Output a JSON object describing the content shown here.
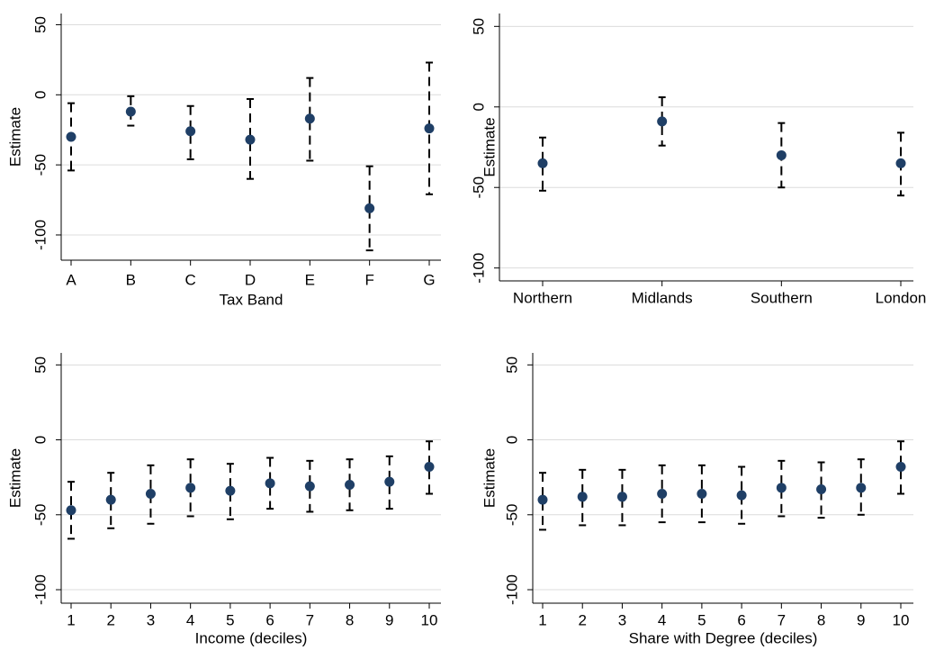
{
  "chart_data": [
    {
      "type": "errorbar",
      "y_label": "Estimate",
      "x_label": "Tax Band",
      "categories": [
        "A",
        "B",
        "C",
        "D",
        "E",
        "F",
        "G"
      ],
      "values": [
        -30,
        -12,
        -26,
        -32,
        -17,
        -81,
        -24
      ],
      "ci_low": [
        -54,
        -22,
        -46,
        -60,
        -47,
        -111,
        -71
      ],
      "ci_high": [
        -6,
        -1,
        -8,
        -3,
        12,
        -51,
        23
      ],
      "ylim": [
        -118,
        58
      ],
      "yticks": [
        -100,
        -50,
        0,
        50
      ],
      "grid": true,
      "color": "#1f3f66",
      "bar_color": "#000000"
    },
    {
      "type": "errorbar",
      "y_label": "Estimate",
      "categories": [
        "Northern",
        "Midlands",
        "Southern",
        "London"
      ],
      "values": [
        -35,
        -9,
        -30,
        -35
      ],
      "ci_low": [
        -52,
        -24,
        -50,
        -55
      ],
      "ci_high": [
        -19,
        6,
        -10,
        -16
      ],
      "ylim": [
        -108,
        58
      ],
      "yticks": [
        -100,
        -50,
        0,
        50
      ],
      "grid": true,
      "color": "#1f3f66",
      "bar_color": "#000000"
    },
    {
      "type": "errorbar",
      "y_label": "Estimate",
      "x_label": "Income (deciles)",
      "categories": [
        "1",
        "2",
        "3",
        "4",
        "5",
        "6",
        "7",
        "8",
        "9",
        "10"
      ],
      "values": [
        -47,
        -40,
        -36,
        -32,
        -34,
        -29,
        -31,
        -30,
        -28,
        -18
      ],
      "ci_low": [
        -66,
        -59,
        -56,
        -51,
        -53,
        -46,
        -48,
        -47,
        -46,
        -36
      ],
      "ci_high": [
        -28,
        -22,
        -17,
        -13,
        -16,
        -12,
        -14,
        -13,
        -11,
        -1
      ],
      "ylim": [
        -109,
        58
      ],
      "yticks": [
        -100,
        -50,
        0,
        50
      ],
      "grid": true,
      "color": "#1f3f66",
      "bar_color": "#000000"
    },
    {
      "type": "errorbar",
      "y_label": "Estimate",
      "x_label": "Share with Degree (deciles)",
      "categories": [
        "1",
        "2",
        "3",
        "4",
        "5",
        "6",
        "7",
        "8",
        "9",
        "10"
      ],
      "values": [
        -40,
        -38,
        -38,
        -36,
        -36,
        -37,
        -32,
        -33,
        -32,
        -18
      ],
      "ci_low": [
        -60,
        -57,
        -57,
        -55,
        -55,
        -56,
        -51,
        -52,
        -50,
        -36
      ],
      "ci_high": [
        -22,
        -20,
        -20,
        -17,
        -17,
        -18,
        -14,
        -15,
        -13,
        -1
      ],
      "ylim": [
        -109,
        58
      ],
      "yticks": [
        -100,
        -50,
        0,
        50
      ],
      "grid": true,
      "color": "#1f3f66",
      "bar_color": "#000000"
    }
  ]
}
